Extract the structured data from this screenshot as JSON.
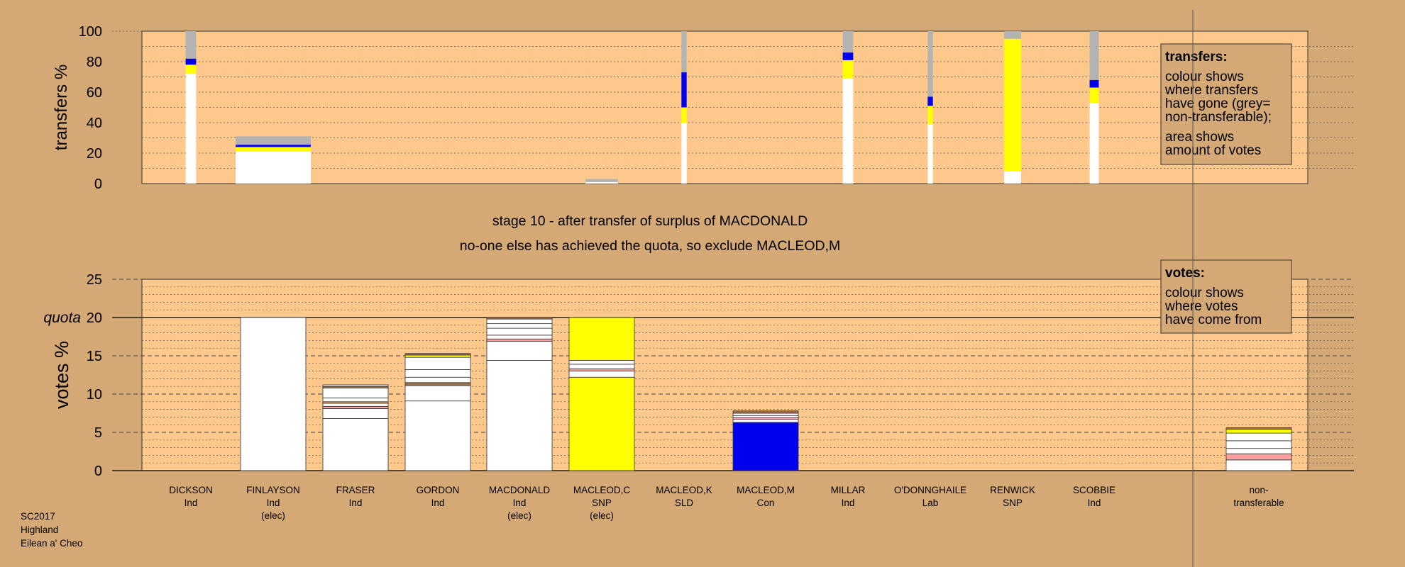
{
  "chart_data": {
    "type": "bar",
    "stage_title": "stage 10 - after transfer of surplus of MACDONALD",
    "stage_subtitle": "no-one else has achieved the quota, so exclude MACLEOD,M",
    "colors": {
      "background": "#d4a976",
      "plot": "#fdc88b",
      "white": "#ffffff",
      "yellow": "#ffff00",
      "blue": "#0000ee",
      "grey": "#b3b3b3",
      "brown": "#a0704a",
      "pink": "#ff9f9f",
      "orange": "#ffa640"
    },
    "top": {
      "ylabel": "transfers %",
      "ylim": [
        0,
        100
      ],
      "yticks": [
        "0",
        "20",
        "40",
        "60",
        "80",
        "100"
      ],
      "legend_title": "transfers:",
      "legend_lines": [
        "colour shows",
        "where transfers",
        "have gone (grey=",
        "non-transferable);",
        "area shows",
        "amount of votes"
      ],
      "bars": [
        {
          "col": 0,
          "width": 0.16,
          "segments": [
            {
              "color": "white",
              "value": 72
            },
            {
              "color": "yellow",
              "value": 6
            },
            {
              "color": "blue",
              "value": 4
            },
            {
              "color": "grey",
              "value": 18
            }
          ]
        },
        {
          "col": 1,
          "width": 1.15,
          "segments": [
            {
              "color": "white",
              "value": 21
            },
            {
              "color": "yellow",
              "value": 3
            },
            {
              "color": "blue",
              "value": 1.5
            },
            {
              "color": "grey",
              "value": 5.5
            }
          ]
        },
        {
          "col": 5,
          "width": 0.5,
          "segments": [
            {
              "color": "white",
              "value": 1
            },
            {
              "color": "grey",
              "value": 2
            }
          ]
        },
        {
          "col": 6,
          "width": 0.08,
          "segments": [
            {
              "color": "white",
              "value": 40
            },
            {
              "color": "yellow",
              "value": 10
            },
            {
              "color": "blue",
              "value": 23
            },
            {
              "color": "grey",
              "value": 27
            }
          ]
        },
        {
          "col": 8,
          "width": 0.16,
          "segments": [
            {
              "color": "white",
              "value": 69
            },
            {
              "color": "yellow",
              "value": 12
            },
            {
              "color": "blue",
              "value": 5
            },
            {
              "color": "grey",
              "value": 14
            }
          ]
        },
        {
          "col": 9,
          "width": 0.08,
          "segments": [
            {
              "color": "white",
              "value": 39
            },
            {
              "color": "yellow",
              "value": 12
            },
            {
              "color": "blue",
              "value": 6
            },
            {
              "color": "grey",
              "value": 43
            }
          ]
        },
        {
          "col": 10,
          "width": 0.26,
          "segments": [
            {
              "color": "white",
              "value": 8
            },
            {
              "color": "yellow",
              "value": 87
            },
            {
              "color": "grey",
              "value": 5
            }
          ]
        },
        {
          "col": 11,
          "width": 0.14,
          "segments": [
            {
              "color": "white",
              "value": 53
            },
            {
              "color": "yellow",
              "value": 10
            },
            {
              "color": "blue",
              "value": 5
            },
            {
              "color": "grey",
              "value": 32
            }
          ]
        }
      ]
    },
    "bottom": {
      "ylabel": "votes %",
      "ylim": [
        0,
        25
      ],
      "yticks": [
        "0",
        "5",
        "10",
        "15",
        "20",
        "25"
      ],
      "quota": 20,
      "quota_label": "quota",
      "legend_title": "votes:",
      "legend_lines": [
        "colour shows",
        "where votes",
        "have come from"
      ],
      "bars": [
        {
          "col": 1,
          "segments": [
            {
              "color": "white",
              "value": 20
            }
          ]
        },
        {
          "col": 2,
          "segments": [
            {
              "color": "white",
              "value": 6.8
            },
            {
              "color": "white",
              "value": 1.3
            },
            {
              "color": "pink",
              "value": 0.3
            },
            {
              "color": "white",
              "value": 0.4
            },
            {
              "color": "orange",
              "value": 0.2
            },
            {
              "color": "white",
              "value": 0.5
            },
            {
              "color": "white",
              "value": 1.3
            },
            {
              "color": "brown",
              "value": 0.2
            },
            {
              "color": "white",
              "value": 0.2
            }
          ]
        },
        {
          "col": 3,
          "segments": [
            {
              "color": "white",
              "value": 9.1
            },
            {
              "color": "white",
              "value": 2
            },
            {
              "color": "brown",
              "value": 0.4
            },
            {
              "color": "white",
              "value": 0.7
            },
            {
              "color": "white",
              "value": 1
            },
            {
              "color": "white",
              "value": 1.6
            },
            {
              "color": "yellow",
              "value": 0.3
            },
            {
              "color": "brown",
              "value": 0.2
            }
          ]
        },
        {
          "col": 4,
          "segments": [
            {
              "color": "white",
              "value": 14.4
            },
            {
              "color": "white",
              "value": 2.5
            },
            {
              "color": "pink",
              "value": 0.3
            },
            {
              "color": "white",
              "value": 0.5
            },
            {
              "color": "white",
              "value": 0.9
            },
            {
              "color": "white",
              "value": 0.6
            },
            {
              "color": "white",
              "value": 0.6
            },
            {
              "color": "brown",
              "value": 0.2
            }
          ]
        },
        {
          "col": 5,
          "segments": [
            {
              "color": "yellow",
              "value": 12.2
            },
            {
              "color": "white",
              "value": 0.8
            },
            {
              "color": "pink",
              "value": 0.3
            },
            {
              "color": "white",
              "value": 0.6
            },
            {
              "color": "white",
              "value": 0.5
            },
            {
              "color": "yellow",
              "value": 5.6
            }
          ]
        },
        {
          "col": 7,
          "segments": [
            {
              "color": "blue",
              "value": 6.3
            },
            {
              "color": "white",
              "value": 0.4
            },
            {
              "color": "pink",
              "value": 0.2
            },
            {
              "color": "white",
              "value": 0.3
            },
            {
              "color": "white",
              "value": 0.3
            },
            {
              "color": "brown",
              "value": 0.3
            }
          ]
        },
        {
          "col": 12,
          "segments": [
            {
              "color": "white",
              "value": 1.4
            },
            {
              "color": "pink",
              "value": 0.8
            },
            {
              "color": "white",
              "value": 0.7
            },
            {
              "color": "white",
              "value": 1
            },
            {
              "color": "white",
              "value": 1
            },
            {
              "color": "yellow",
              "value": 0.5
            },
            {
              "color": "brown",
              "value": 0.2
            }
          ]
        }
      ]
    },
    "candidates": [
      {
        "name": "DICKSON",
        "party": "Ind",
        "status": ""
      },
      {
        "name": "FINLAYSON",
        "party": "Ind",
        "status": "(elec)"
      },
      {
        "name": "FRASER",
        "party": "Ind",
        "status": ""
      },
      {
        "name": "GORDON",
        "party": "Ind",
        "status": ""
      },
      {
        "name": "MACDONALD",
        "party": "Ind",
        "status": "(elec)"
      },
      {
        "name": "MACLEOD,C",
        "party": "SNP",
        "status": "(elec)"
      },
      {
        "name": "MACLEOD,K",
        "party": "SLD",
        "status": ""
      },
      {
        "name": "MACLEOD,M",
        "party": "Con",
        "status": ""
      },
      {
        "name": "MILLAR",
        "party": "Ind",
        "status": ""
      },
      {
        "name": "O'DONNGHAILE",
        "party": "Lab",
        "status": ""
      },
      {
        "name": "RENWICK",
        "party": "SNP",
        "status": ""
      },
      {
        "name": "SCOBBIE",
        "party": "Ind",
        "status": ""
      },
      {
        "name": "non-",
        "party": "transferable",
        "status": ""
      }
    ]
  },
  "footer": {
    "line1": "SC2017",
    "line2": "Highland",
    "line3": "Eilean a' Cheo"
  }
}
